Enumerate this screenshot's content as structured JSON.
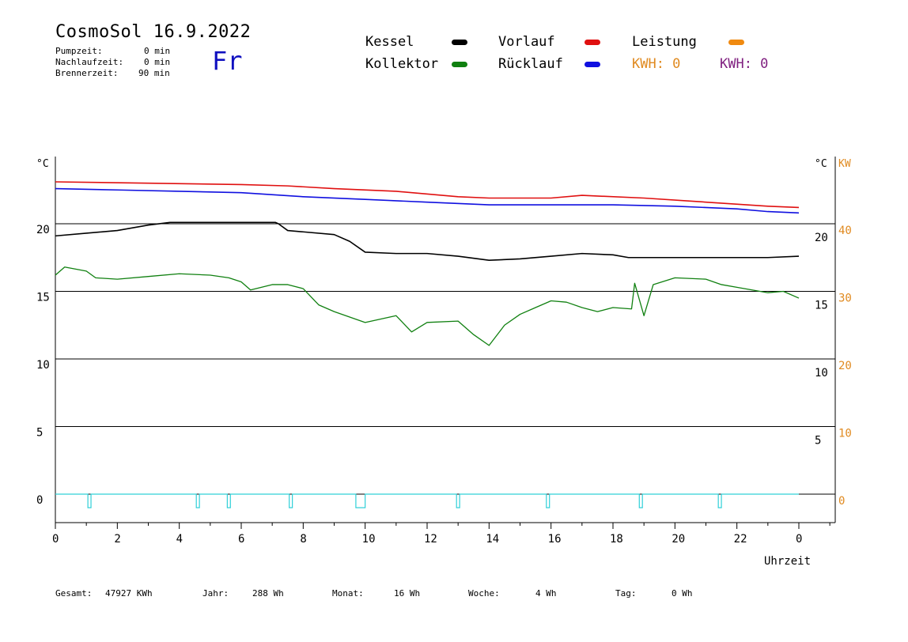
{
  "header": {
    "title": "CosmoSol 16.9.2022",
    "day": "Fr",
    "stats": [
      {
        "label": "Pumpzeit:",
        "value": "0 min"
      },
      {
        "label": "Nachlaufzeit:",
        "value": "0 min"
      },
      {
        "label": "Brennerzeit:",
        "value": "90 min"
      }
    ]
  },
  "legend": {
    "items": [
      {
        "label": "Kessel",
        "color": "#000000"
      },
      {
        "label": "Vorlauf",
        "color": "#e01010"
      },
      {
        "label": "Leistung",
        "color": "#f08a10"
      },
      {
        "label": "Kollektor",
        "color": "#108010"
      },
      {
        "label": "Rücklauf",
        "color": "#1010e0"
      }
    ],
    "kwh1": "KWH: 0",
    "kwh2": "KWH: 0"
  },
  "footer": {
    "items": [
      {
        "label": "Gesamt:",
        "value": "47927 KWh"
      },
      {
        "label": "Jahr:",
        "value": "288 Wh"
      },
      {
        "label": "Monat:",
        "value": "16 Wh"
      },
      {
        "label": "Woche:",
        "value": "4 Wh"
      },
      {
        "label": "Tag:",
        "value": "0 Wh"
      }
    ]
  },
  "chart_data": {
    "type": "line",
    "xlabel": "Uhrzeit",
    "ylabel_left": "°C",
    "ylabel_right": "°C",
    "ylabel_kw": "KW",
    "xlim": [
      0,
      24
    ],
    "ylim": [
      -2,
      25
    ],
    "x_ticks": [
      "0",
      "2",
      "4",
      "6",
      "8",
      "10",
      "12",
      "14",
      "16",
      "18",
      "20",
      "22",
      "0"
    ],
    "y_ticks_left": [
      "0",
      "5",
      "10",
      "15",
      "20"
    ],
    "y_ticks_right": [
      "5",
      "10",
      "15",
      "20"
    ],
    "y_ticks_kw": [
      "0",
      "10",
      "20",
      "30",
      "40"
    ],
    "grid": "horizontal",
    "series": [
      {
        "name": "Vorlauf",
        "color": "#e01010",
        "x": [
          0,
          3,
          6,
          7.5,
          9,
          11,
          13,
          14,
          16,
          17,
          19,
          21,
          23,
          24
        ],
        "y": [
          23.1,
          23.0,
          22.9,
          22.8,
          22.6,
          22.4,
          22.0,
          21.9,
          21.9,
          22.1,
          21.9,
          21.6,
          21.3,
          21.2
        ]
      },
      {
        "name": "Rücklauf",
        "color": "#1010e0",
        "x": [
          0,
          2,
          4,
          6,
          8,
          10,
          12,
          14,
          16,
          18,
          20,
          22,
          23,
          24
        ],
        "y": [
          22.6,
          22.5,
          22.4,
          22.3,
          22.0,
          21.8,
          21.6,
          21.4,
          21.4,
          21.4,
          21.3,
          21.1,
          20.9,
          20.8
        ]
      },
      {
        "name": "Kessel",
        "color": "#000000",
        "x": [
          0,
          1,
          2,
          3,
          3.7,
          3.8,
          7.1,
          7.2,
          7.5,
          8,
          9,
          9.5,
          10,
          11,
          12,
          13,
          14,
          15,
          16,
          17,
          18,
          18.5,
          20,
          22,
          23,
          24
        ],
        "y": [
          19.1,
          19.3,
          19.5,
          19.9,
          20.1,
          20.1,
          20.1,
          20.0,
          19.5,
          19.4,
          19.2,
          18.7,
          17.9,
          17.8,
          17.8,
          17.6,
          17.3,
          17.4,
          17.6,
          17.8,
          17.7,
          17.5,
          17.5,
          17.5,
          17.5,
          17.6
        ]
      },
      {
        "name": "Kollektor",
        "color": "#108010",
        "x": [
          0,
          0.3,
          1,
          1.3,
          2,
          3,
          4,
          5,
          5.6,
          6,
          6.3,
          7,
          7.5,
          8,
          8.5,
          9,
          10,
          11,
          11.5,
          12,
          13,
          13.5,
          14,
          14.5,
          15,
          15.5,
          16,
          16.5,
          17,
          17.5,
          18,
          18.6,
          18.7,
          19,
          19.3,
          20,
          21,
          21.5,
          22,
          23,
          23.5,
          24
        ],
        "y": [
          16.2,
          16.8,
          16.5,
          16.0,
          15.9,
          16.1,
          16.3,
          16.2,
          16.0,
          15.7,
          15.1,
          15.5,
          15.5,
          15.2,
          14.0,
          13.5,
          12.7,
          13.2,
          12.0,
          12.7,
          12.8,
          11.8,
          11.0,
          12.5,
          13.3,
          13.8,
          14.3,
          14.2,
          13.8,
          13.5,
          13.8,
          13.7,
          15.6,
          13.2,
          15.5,
          16.0,
          15.9,
          15.5,
          15.3,
          14.9,
          15.0,
          14.5
        ]
      },
      {
        "name": "Pumpe",
        "color": "#30d0d8",
        "x": [
          0,
          1.05,
          1.15,
          4.55,
          4.65,
          5.55,
          5.65,
          7.55,
          7.65,
          9.7,
          10.0,
          12.95,
          13.05,
          15.85,
          15.95,
          18.85,
          18.95,
          21.4,
          21.5,
          24
        ],
        "y": [
          0,
          -1,
          -1,
          -1,
          -1,
          -1,
          -1,
          -1,
          -1,
          -1,
          -1,
          -1,
          -1,
          -1,
          -1,
          -1,
          -1,
          -1,
          -1,
          0
        ]
      }
    ]
  }
}
